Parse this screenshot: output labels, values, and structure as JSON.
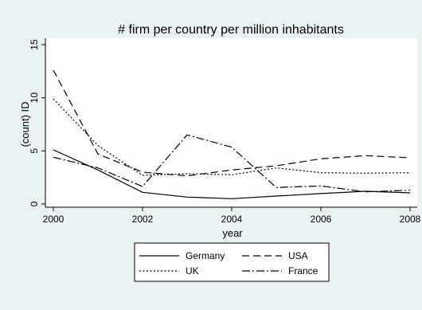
{
  "chart_data": {
    "type": "line",
    "title": "# firm per country per million inhabitants",
    "xlabel": "year",
    "ylabel": "(count) ID",
    "x": [
      2000,
      2001,
      2002,
      2003,
      2004,
      2005,
      2006,
      2007,
      2008
    ],
    "xlim": [
      2000,
      2008
    ],
    "ylim": [
      0,
      15
    ],
    "xticks": [
      "2000",
      "2002",
      "2004",
      "2006",
      "2008"
    ],
    "yticks": [
      "0",
      "5",
      "10",
      "15"
    ],
    "grid": false,
    "legend_position": "bottom",
    "series": [
      {
        "name": "Germany",
        "dash": "solid",
        "color": "#000000",
        "values": [
          5.1,
          3.2,
          1.1,
          0.65,
          0.5,
          0.75,
          0.98,
          1.2,
          1.05
        ]
      },
      {
        "name": "USA",
        "dash": "long-dash",
        "color": "#000000",
        "values": [
          12.6,
          4.7,
          3.0,
          2.65,
          3.2,
          3.6,
          4.25,
          4.55,
          4.35
        ]
      },
      {
        "name": "UK",
        "dash": "dotted",
        "color": "#000000",
        "values": [
          9.9,
          5.5,
          2.7,
          2.85,
          2.75,
          3.4,
          2.95,
          2.9,
          2.95
        ]
      },
      {
        "name": "France",
        "dash": "dash-dot",
        "color": "#000000",
        "values": [
          4.4,
          3.4,
          1.65,
          6.5,
          5.35,
          1.55,
          1.7,
          1.15,
          1.3
        ]
      }
    ]
  }
}
